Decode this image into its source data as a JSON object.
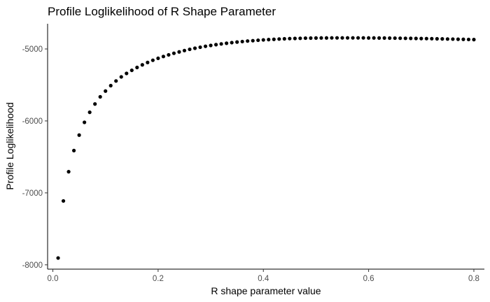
{
  "chart_data": {
    "type": "scatter",
    "title": "Profile Loglikelihood of R Shape Parameter",
    "xlabel": "R shape parameter value",
    "ylabel": "Profile Loglikelihood",
    "xlim": [
      -0.01,
      0.82
    ],
    "ylim": [
      -8060,
      -4650
    ],
    "x_ticks": [
      0.0,
      0.2,
      0.4,
      0.6,
      0.8
    ],
    "x_tick_labels": [
      "0.0",
      "0.2",
      "0.4",
      "0.6",
      "0.8"
    ],
    "y_ticks": [
      -8000,
      -7000,
      -6000,
      -5000
    ],
    "y_tick_labels": [
      "-8000",
      "-7000",
      "-6000",
      "-5000"
    ],
    "grid": false,
    "legend": "none",
    "point_color": "#000000",
    "x": [
      0.01,
      0.02,
      0.03,
      0.04,
      0.05,
      0.06,
      0.07,
      0.08,
      0.09,
      0.1,
      0.11,
      0.12,
      0.13,
      0.14,
      0.15,
      0.16,
      0.17,
      0.18,
      0.19,
      0.2,
      0.21,
      0.22,
      0.23,
      0.24,
      0.25,
      0.26,
      0.27,
      0.28,
      0.29,
      0.3,
      0.31,
      0.32,
      0.33,
      0.34,
      0.35,
      0.36,
      0.37,
      0.38,
      0.39,
      0.4,
      0.41,
      0.42,
      0.43,
      0.44,
      0.45,
      0.46,
      0.47,
      0.48,
      0.49,
      0.5,
      0.51,
      0.52,
      0.53,
      0.54,
      0.55,
      0.56,
      0.57,
      0.58,
      0.59,
      0.6,
      0.61,
      0.62,
      0.63,
      0.64,
      0.65,
      0.66,
      0.67,
      0.68,
      0.69,
      0.7,
      0.71,
      0.72,
      0.73,
      0.74,
      0.75,
      0.76,
      0.77,
      0.78,
      0.79,
      0.8
    ],
    "y": [
      -7905,
      -7112,
      -6706,
      -6412,
      -6197,
      -6020,
      -5880,
      -5765,
      -5665,
      -5585,
      -5510,
      -5445,
      -5388,
      -5340,
      -5297,
      -5257,
      -5221,
      -5188,
      -5157,
      -5130,
      -5105,
      -5082,
      -5060,
      -5041,
      -5022,
      -5005,
      -4990,
      -4976,
      -4963,
      -4951,
      -4940,
      -4930,
      -4921,
      -4912,
      -4904,
      -4897,
      -4890,
      -4885,
      -4879,
      -4874,
      -4870,
      -4866,
      -4862,
      -4859,
      -4856,
      -4854,
      -4852,
      -4850,
      -4849,
      -4848,
      -4847,
      -4847,
      -4846,
      -4846,
      -4846,
      -4846,
      -4846,
      -4846,
      -4846,
      -4847,
      -4847,
      -4848,
      -4848,
      -4849,
      -4850,
      -4851,
      -4852,
      -4853,
      -4854,
      -4855,
      -4856,
      -4857,
      -4859,
      -4860,
      -4862,
      -4863,
      -4865,
      -4866,
      -4868,
      -4870
    ]
  }
}
